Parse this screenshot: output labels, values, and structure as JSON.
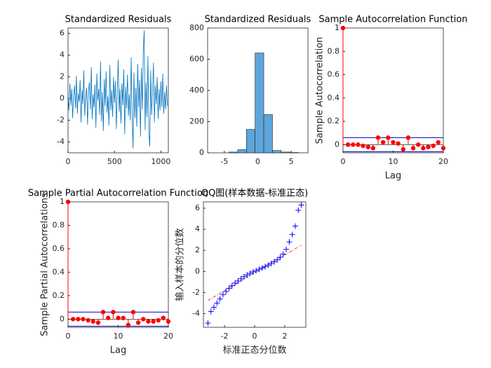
{
  "chart_data": [
    {
      "type": "line",
      "title": "Standardized Residuals",
      "color": "#0072BD",
      "x": [
        0,
        10,
        20,
        30,
        40,
        50,
        60,
        70,
        80,
        90,
        100,
        110,
        120,
        130,
        140,
        150,
        160,
        170,
        180,
        190,
        200,
        210,
        220,
        230,
        240,
        250,
        260,
        270,
        280,
        290,
        300,
        310,
        320,
        330,
        340,
        350,
        360,
        370,
        380,
        390,
        400,
        410,
        420,
        430,
        440,
        450,
        460,
        470,
        480,
        490,
        500,
        510,
        520,
        530,
        540,
        550,
        560,
        570,
        580,
        590,
        600,
        610,
        620,
        630,
        640,
        650,
        660,
        670,
        680,
        690,
        700,
        710,
        720,
        730,
        740,
        750,
        760,
        770,
        780,
        790,
        800,
        810,
        820,
        830,
        840,
        850,
        860,
        870,
        880,
        890,
        900,
        910,
        920,
        930,
        940,
        950,
        960,
        970,
        980,
        990,
        1000,
        1010,
        1020,
        1030,
        1040,
        1050,
        1060,
        1070
      ],
      "values": [
        0.2,
        -1.1,
        1.4,
        -0.6,
        0.9,
        -1.8,
        0.3,
        1.2,
        -0.9,
        2.1,
        -1.4,
        0.5,
        -0.3,
        1.7,
        -2.2,
        0.8,
        -0.5,
        2.6,
        -1.6,
        0.1,
        1.0,
        -2.4,
        0.7,
        1.5,
        -1.0,
        2.9,
        -1.9,
        0.4,
        -0.8,
        1.3,
        -2.7,
        2.3,
        -0.2,
        0.9,
        -1.5,
        3.4,
        -2.1,
        0.6,
        -3.0,
        1.8,
        -0.7,
        2.5,
        -1.3,
        0.2,
        -2.5,
        3.1,
        -1.1,
        0.8,
        -1.7,
        2.0,
        -0.4,
        1.6,
        -2.8,
        0.5,
        3.6,
        -1.2,
        0.9,
        -2.3,
        1.4,
        -0.6,
        2.7,
        -3.3,
        1.1,
        -0.9,
        2.2,
        -1.6,
        0.4,
        -2.0,
        3.8,
        -1.4,
        -4.6,
        2.4,
        -1.8,
        1.0,
        -2.6,
        3.2,
        -0.8,
        1.7,
        -3.5,
        2.8,
        -1.0,
        4.4,
        6.3,
        -2.9,
        1.5,
        -1.7,
        3.9,
        -3.1,
        -4.4,
        2.6,
        -1.5,
        0.7,
        3.3,
        -2.2,
        1.2,
        -0.5,
        2.0,
        -1.9,
        0.9,
        -1.1,
        1.6,
        -0.8,
        2.3,
        -1.4,
        0.6,
        -1.0,
        1.2,
        -0.7
      ],
      "xlim": [
        0,
        1080
      ],
      "ylim": [
        -5,
        6.5
      ],
      "xticks": [
        0,
        500,
        1000
      ],
      "yticks": [
        -4,
        -2,
        0,
        2,
        4,
        6
      ]
    },
    {
      "type": "histogram",
      "title": "Standardized Residuals",
      "color": "#5DA5DA",
      "bins": [
        -4.3,
        -3.0,
        -1.7,
        -0.4,
        0.9,
        2.2,
        3.5,
        4.8,
        6.1
      ],
      "values": [
        5,
        20,
        150,
        640,
        245,
        15,
        5,
        2
      ],
      "xlim": [
        -7.5,
        7.5
      ],
      "ylim": [
        0,
        800
      ],
      "xticks": [
        -5,
        0,
        5
      ],
      "yticks": [
        0,
        200,
        400,
        600,
        800
      ]
    },
    {
      "type": "stem",
      "title": "Sample Autocorrelation Function",
      "xlabel": "Lag",
      "ylabel": "Sample Autocorrelation",
      "color": "#FF0000",
      "bound_color": "#0000C8",
      "x": [
        0,
        1,
        2,
        3,
        4,
        5,
        6,
        7,
        8,
        9,
        10,
        11,
        12,
        13,
        14,
        15,
        16,
        17,
        18,
        19,
        20
      ],
      "values": [
        1,
        0.0,
        0.0,
        0.0,
        -0.01,
        -0.02,
        -0.03,
        0.06,
        0.02,
        0.06,
        0.02,
        0.01,
        -0.04,
        0.06,
        -0.03,
        0.0,
        -0.03,
        -0.02,
        -0.01,
        0.02,
        -0.03
      ],
      "bounds": [
        0.06,
        -0.06
      ],
      "xlim": [
        0,
        20
      ],
      "ylim": [
        -0.07,
        1
      ],
      "xticks": [
        0,
        10,
        20
      ],
      "yticks": [
        0,
        0.2,
        0.4,
        0.6,
        0.8,
        1
      ]
    },
    {
      "type": "stem",
      "title": "Sample Partial Autocorrelation Function",
      "xlabel": "Lag",
      "ylabel": "Sample Partial Autocorrelations",
      "color": "#FF0000",
      "bound_color": "#0000C8",
      "x": [
        0,
        1,
        2,
        3,
        4,
        5,
        6,
        7,
        8,
        9,
        10,
        11,
        12,
        13,
        14,
        15,
        16,
        17,
        18,
        19,
        20
      ],
      "values": [
        1,
        0.0,
        0.0,
        0.0,
        -0.01,
        -0.02,
        -0.03,
        0.06,
        0.01,
        0.06,
        0.01,
        0.01,
        -0.05,
        0.06,
        -0.03,
        0.0,
        -0.02,
        -0.02,
        -0.01,
        0.01,
        -0.02
      ],
      "bounds": [
        0.06,
        -0.06
      ],
      "xlim": [
        0,
        20
      ],
      "ylim": [
        -0.07,
        1
      ],
      "xticks": [
        0,
        10,
        20
      ],
      "yticks": [
        0,
        0.2,
        0.4,
        0.6,
        0.8,
        1
      ]
    },
    {
      "type": "scatter",
      "title": "QQ图(样本数据-标准正态)",
      "xlabel": "标准正态分位数",
      "ylabel": "输入样本的分位数",
      "color": "#0000FF",
      "ref_color": "#E03C1E",
      "x": [
        -3.1,
        -2.9,
        -2.7,
        -2.5,
        -2.3,
        -2.1,
        -1.9,
        -1.7,
        -1.5,
        -1.3,
        -1.1,
        -0.9,
        -0.7,
        -0.5,
        -0.3,
        -0.1,
        0.1,
        0.3,
        0.5,
        0.7,
        0.9,
        1.1,
        1.3,
        1.5,
        1.7,
        1.9,
        2.1,
        2.3,
        2.5,
        2.7,
        2.9,
        3.1
      ],
      "values": [
        -4.9,
        -3.8,
        -3.4,
        -3.0,
        -2.6,
        -2.2,
        -1.9,
        -1.6,
        -1.35,
        -1.1,
        -0.9,
        -0.7,
        -0.5,
        -0.33,
        -0.18,
        -0.04,
        0.08,
        0.2,
        0.33,
        0.46,
        0.6,
        0.75,
        0.92,
        1.1,
        1.35,
        1.65,
        2.1,
        2.8,
        3.5,
        4.3,
        5.8,
        6.3
      ],
      "ref_line": {
        "x": [
          -3.1,
          3.1
        ],
        "y": [
          -2.75,
          2.5
        ]
      },
      "xlim": [
        -3.4,
        3.4
      ],
      "ylim": [
        -5.3,
        6.6
      ],
      "xticks": [
        -2,
        0,
        2
      ],
      "yticks": [
        -4,
        -2,
        0,
        2,
        4,
        6
      ]
    }
  ]
}
